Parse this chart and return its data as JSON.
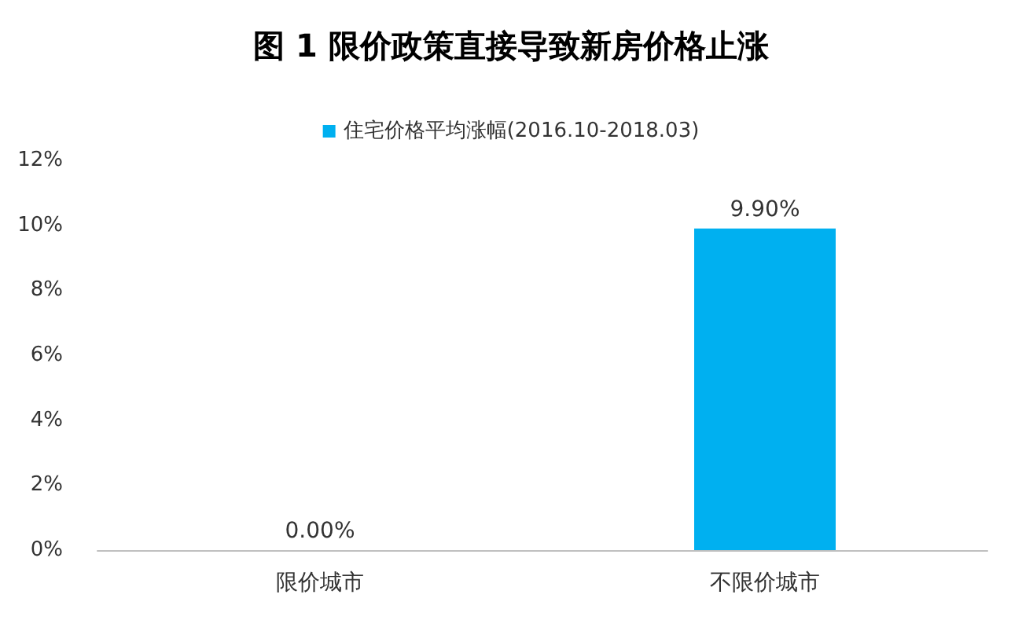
{
  "chart_data": {
    "type": "bar",
    "title": "图 1 限价政策直接导致新房价格止涨",
    "categories": [
      "限价城市",
      "不限价城市"
    ],
    "series": [
      {
        "name": "住宅价格平均涨幅(2016.10-2018.03)",
        "color": "#00b0f0",
        "values": [
          0,
          9.9
        ],
        "value_labels": [
          "0.00%",
          "9.90%"
        ]
      }
    ],
    "ylim": [
      0,
      12
    ],
    "yticks": [
      {
        "value": 0,
        "label": "0%"
      },
      {
        "value": 2,
        "label": "2%"
      },
      {
        "value": 4,
        "label": "4%"
      },
      {
        "value": 6,
        "label": "6%"
      },
      {
        "value": 8,
        "label": "8%"
      },
      {
        "value": 10,
        "label": "10%"
      },
      {
        "value": 12,
        "label": "12%"
      }
    ],
    "grid": false,
    "legend": "top"
  }
}
